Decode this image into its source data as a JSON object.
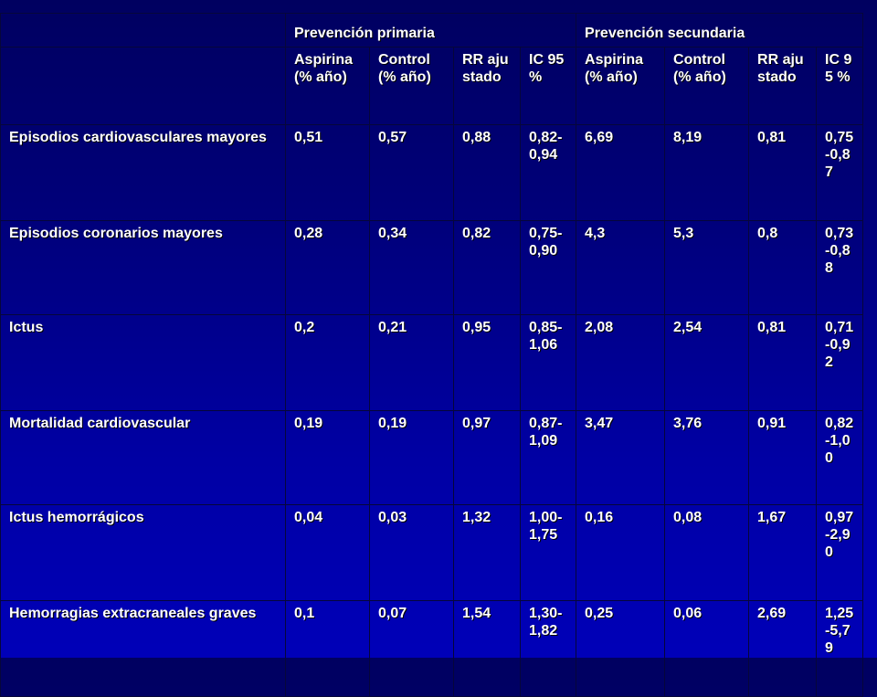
{
  "table": {
    "groups": {
      "primary": "Prevención primaria",
      "secondary": "Prevención secundaria"
    },
    "columns": [
      "Aspirina (% año)",
      "Control (% año)",
      "RR ajustado",
      "IC 95 %",
      "Aspirina (% año)",
      "Control (% año)",
      "RR ajustado",
      "IC 95 %"
    ],
    "rows": [
      {
        "label": "Episodios cardiovasculares mayores",
        "values": [
          "0,51",
          "0,57",
          "0,88",
          "0,82-0,94",
          "6,69",
          "8,19",
          "0,81",
          "0,75-0,87"
        ]
      },
      {
        "label": "Episodios coronarios mayores",
        "values": [
          "0,28",
          "0,34",
          "0,82",
          "0,75-0,90",
          "4,3",
          "5,3",
          "0,8",
          "0,73-0,88"
        ]
      },
      {
        "label": "Ictus",
        "values": [
          "0,2",
          "0,21",
          "0,95",
          "0,85-1,06",
          "2,08",
          "2,54",
          "0,81",
          "0,71-0,92"
        ]
      },
      {
        "label": "Mortalidad cardiovascular",
        "values": [
          "0,19",
          "0,19",
          "0,97",
          "0,87-1,09",
          "3,47",
          "3,76",
          "0,91",
          "0,82-1,00"
        ]
      },
      {
        "label": "Ictus hemorrágicos",
        "values": [
          "0,04",
          "0,03",
          "1,32",
          "1,00-1,75",
          "0,16",
          "0,08",
          "1,67",
          "0,97-2,90"
        ]
      },
      {
        "label": "Hemorragias extracraneales graves",
        "values": [
          "0,1",
          "0,07",
          "1,54",
          "1,30-1,82",
          "0,25",
          "0,06",
          "2,69",
          "1,25-5,79"
        ]
      }
    ]
  }
}
